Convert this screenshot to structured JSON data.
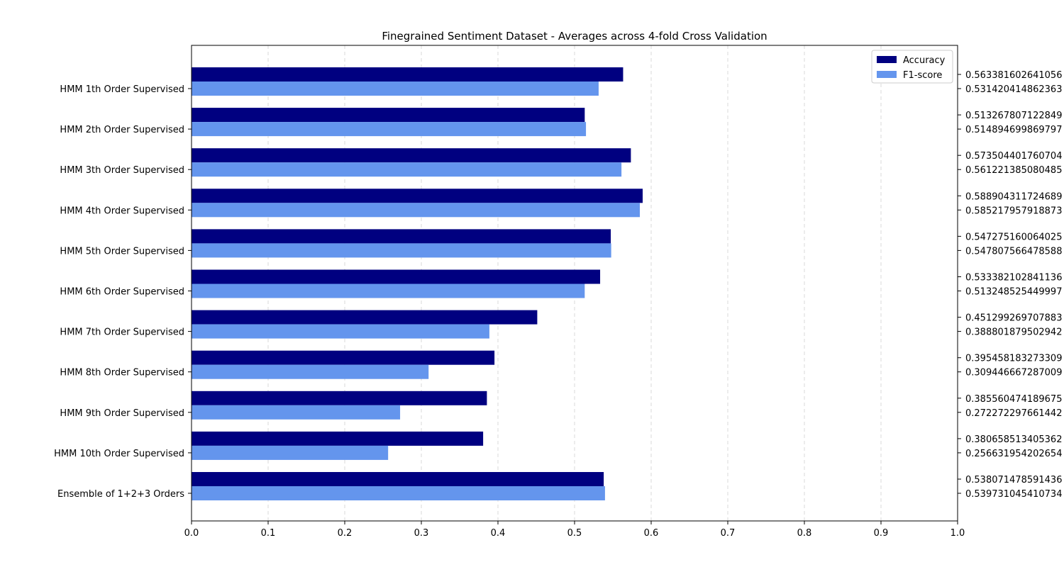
{
  "chart_data": {
    "type": "bar",
    "orientation": "horizontal",
    "title": "Finegrained Sentiment Dataset - Averages across 4-fold Cross Validation",
    "xlabel": "",
    "ylabel": "",
    "xlim": [
      0.0,
      1.0
    ],
    "xticks": [
      "0.0",
      "0.1",
      "0.2",
      "0.3",
      "0.4",
      "0.5",
      "0.6",
      "0.7",
      "0.8",
      "0.9",
      "1.0"
    ],
    "grid": "vertical-dashed",
    "legend_position": "top-right",
    "categories": [
      "HMM 1th Order Supervised",
      "HMM 2th Order Supervised",
      "HMM 3th Order Supervised",
      "HMM 4th Order Supervised",
      "HMM 5th Order Supervised",
      "HMM 6th Order Supervised",
      "HMM 7th Order Supervised",
      "HMM 8th Order Supervised",
      "HMM 9th Order Supervised",
      "HMM 10th Order Supervised",
      "Ensemble of 1+2+3 Orders"
    ],
    "series": [
      {
        "name": "Accuracy",
        "color": "#000080",
        "values": [
          0.563381602641056,
          0.513267807122849,
          0.573504401760704,
          0.588904311724689,
          0.547275160064025,
          0.533382102841136,
          0.451299269707883,
          0.395458183273309,
          0.385560474189675,
          0.380658513405362,
          0.538071478591436
        ],
        "value_labels": [
          "0.563381602641056",
          "0.513267807122849",
          "0.573504401760704",
          "0.588904311724689",
          "0.547275160064025",
          "0.533382102841136",
          "0.451299269707883",
          "0.395458183273309",
          "0.385560474189675",
          "0.380658513405362",
          "0.538071478591436"
        ]
      },
      {
        "name": "F1-score",
        "color": "#6495ED",
        "values": [
          0.531420414862363,
          0.514894699869797,
          0.561221385080485,
          0.585217957918873,
          0.547807566478588,
          0.513248525449997,
          0.388801879502942,
          0.309446667287009,
          0.272272297661442,
          0.256631954202654,
          0.539731045410734
        ],
        "value_labels": [
          "0.531420414862363",
          "0.514894699869797",
          "0.561221385080485",
          "0.585217957918873",
          "0.547807566478588",
          "0.513248525449997",
          "0.388801879502942",
          "0.309446667287009",
          "0.272272297661442",
          "0.256631954202654",
          "0.539731045410734"
        ]
      }
    ]
  }
}
